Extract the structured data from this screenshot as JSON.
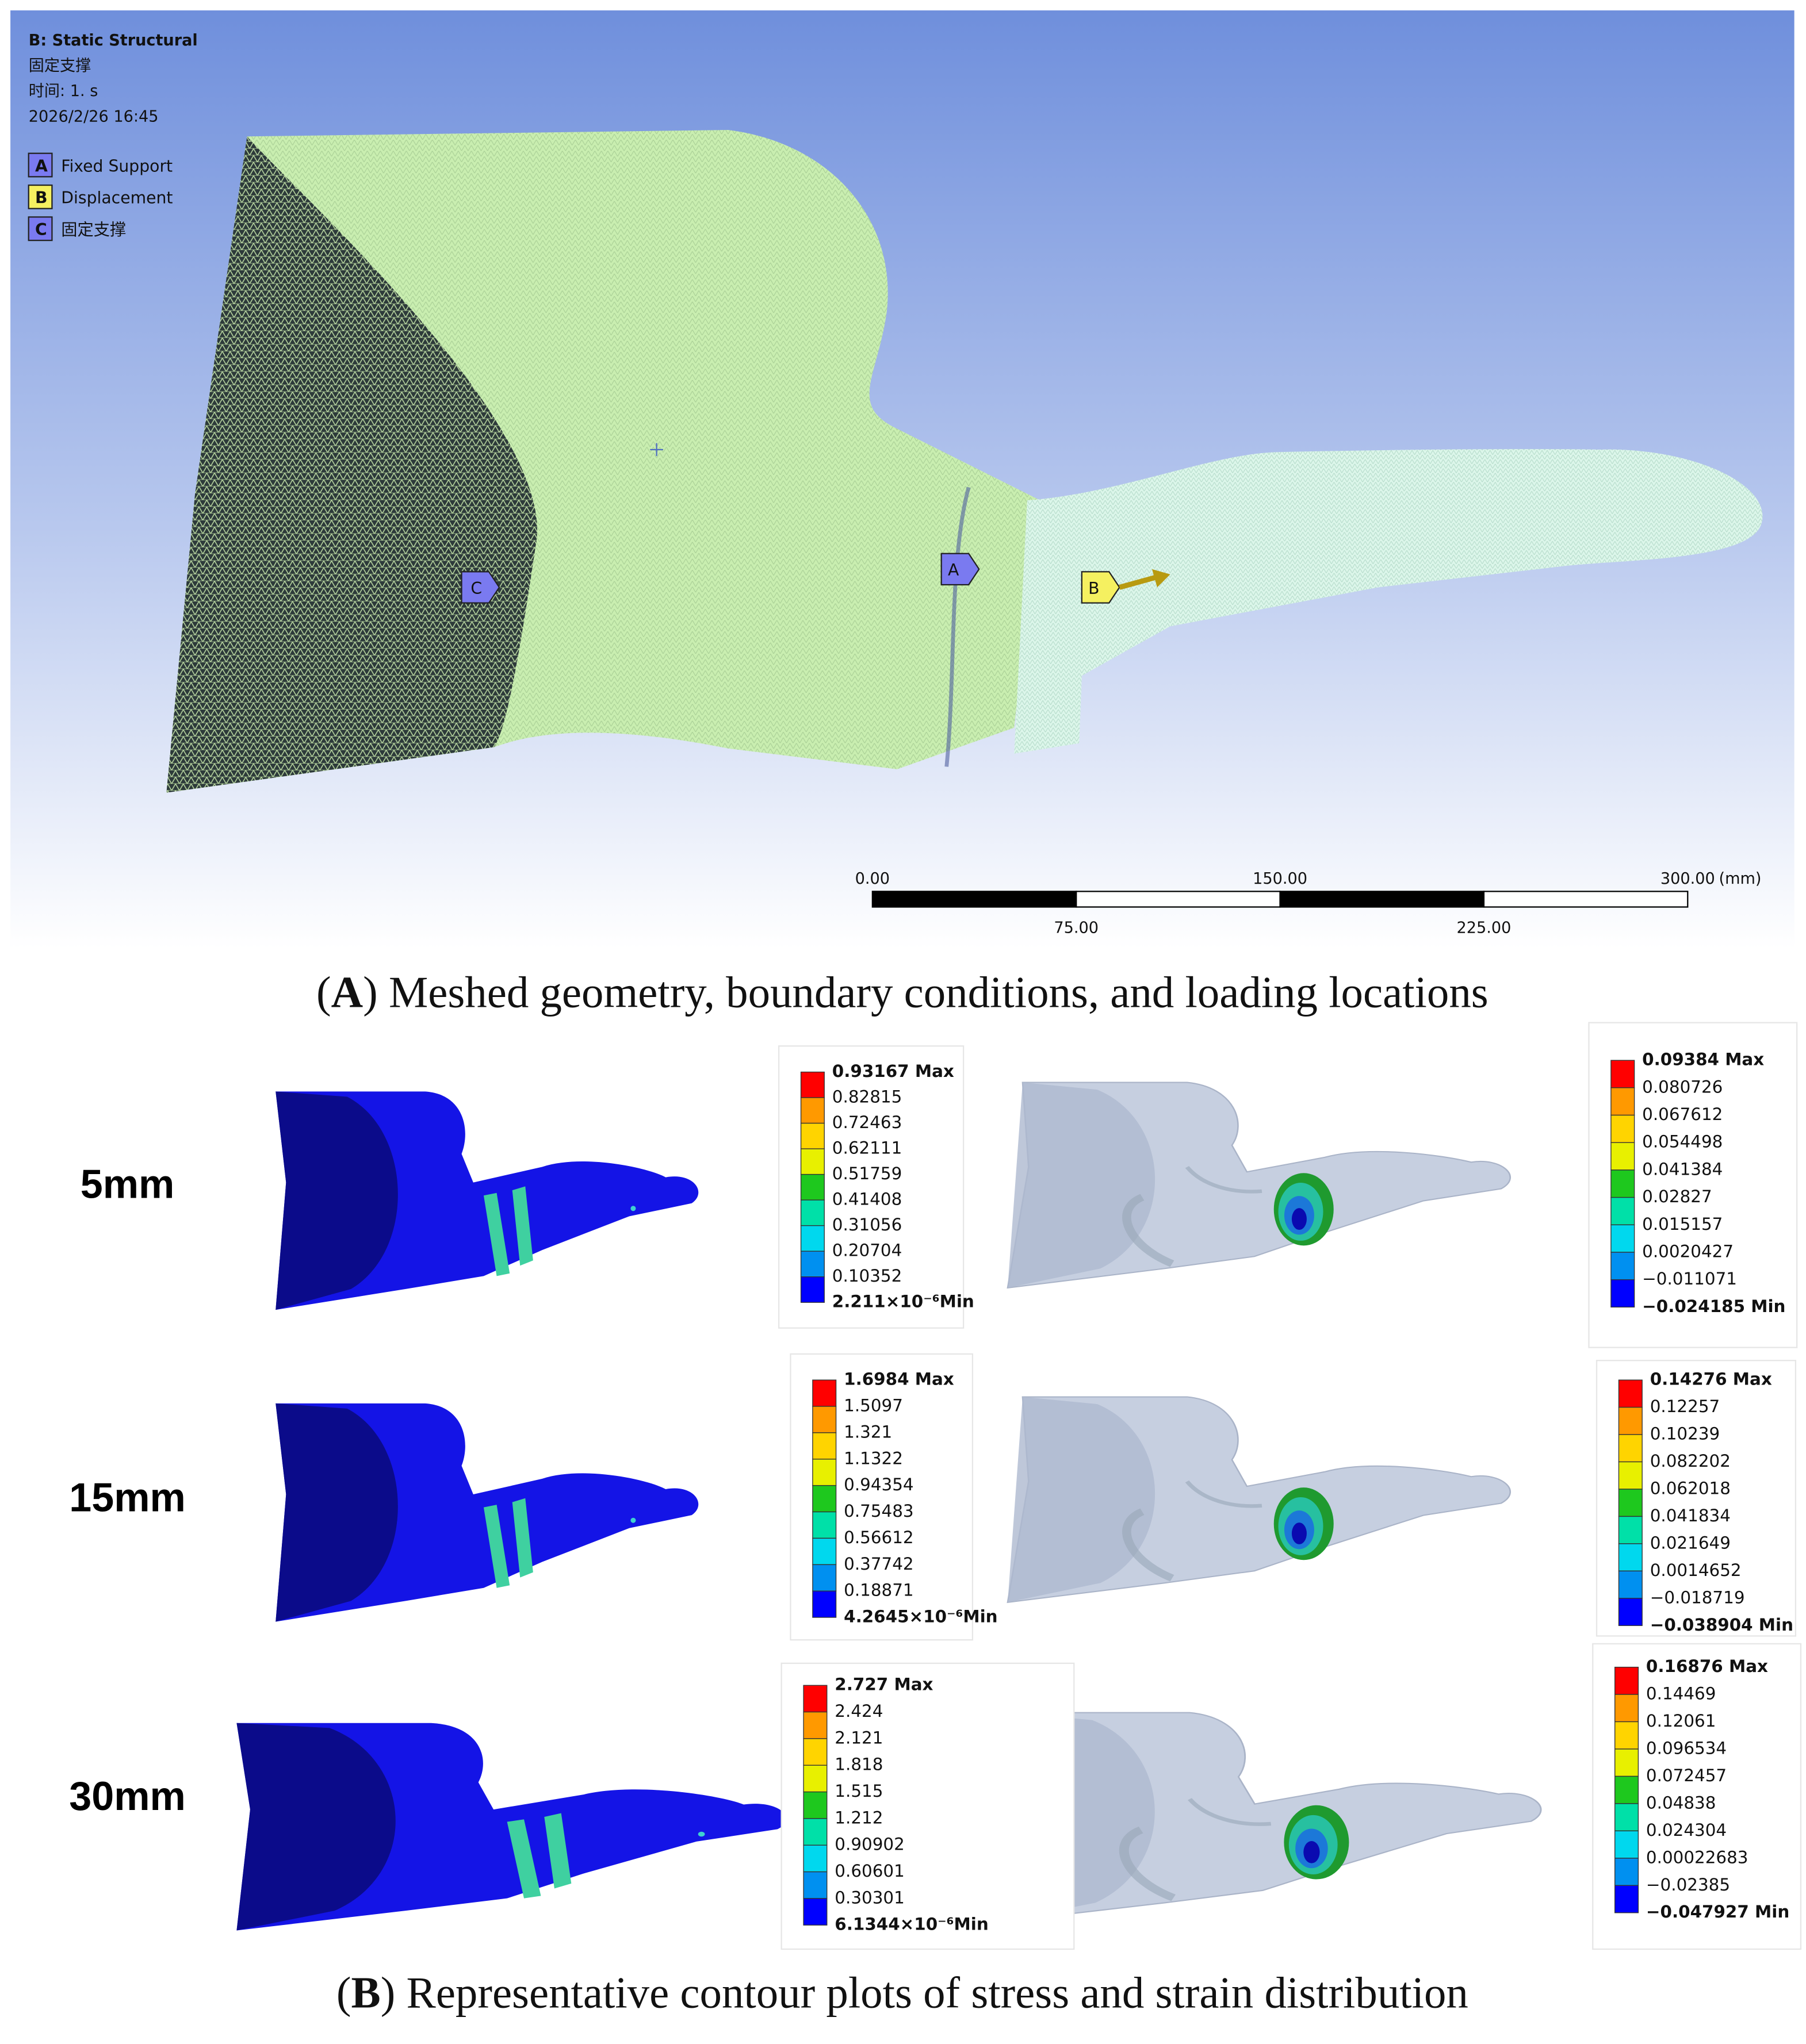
{
  "panel_a": {
    "header": [
      "B: Static Structural",
      "固定支撑",
      "时间: 1. s",
      "2026/2/26 16:45"
    ],
    "legend": [
      {
        "key": "A",
        "label": "Fixed Support"
      },
      {
        "key": "B",
        "label": "Displacement"
      },
      {
        "key": "C",
        "label": "固定支撑"
      }
    ],
    "scale_bar": {
      "top": [
        "0.00",
        "150.00",
        "300.00"
      ],
      "unit": "(mm)",
      "bottom": [
        "75.00",
        "225.00"
      ]
    },
    "caption": {
      "open": "(",
      "label": "A",
      "rest": ") Meshed geometry, boundary conditions, and loading locations"
    }
  },
  "panel_b": {
    "rows": [
      {
        "label": "5mm",
        "stress_legend": [
          "0.93167 Max",
          "0.82815",
          "0.72463",
          "0.62111",
          "0.51759",
          "0.41408",
          "0.31056",
          "0.20704",
          "0.10352",
          "2.211×10⁻⁶Min"
        ],
        "strain_legend": [
          "0.09384 Max",
          "0.080726",
          "0.067612",
          "0.054498",
          "0.041384",
          "0.02827",
          "0.015157",
          "0.0020427",
          "−0.011071",
          "−0.024185 Min"
        ]
      },
      {
        "label": "15mm",
        "stress_legend": [
          "1.6984 Max",
          "1.5097",
          "1.321",
          "1.1322",
          "0.94354",
          "0.75483",
          "0.56612",
          "0.37742",
          "0.18871",
          "4.2645×10⁻⁶Min"
        ],
        "strain_legend": [
          "0.14276 Max",
          "0.12257",
          "0.10239",
          "0.082202",
          "0.062018",
          "0.041834",
          "0.021649",
          "0.0014652",
          "−0.018719",
          "−0.038904 Min"
        ]
      },
      {
        "label": "30mm",
        "stress_legend": [
          "2.727 Max",
          "2.424",
          "2.121",
          "1.818",
          "1.515",
          "1.212",
          "0.90902",
          "0.60601",
          "0.30301",
          "6.1344×10⁻⁶Min"
        ],
        "strain_legend": [
          "0.16876 Max",
          "0.14469",
          "0.12061",
          "0.096534",
          "0.072457",
          "0.04838",
          "0.024304",
          "0.00022683",
          "−0.02385",
          "−0.047927 Min"
        ]
      }
    ],
    "caption": {
      "open": "(",
      "label": "B",
      "rest": ") Representative contour plots of stress and strain distribution"
    }
  }
}
